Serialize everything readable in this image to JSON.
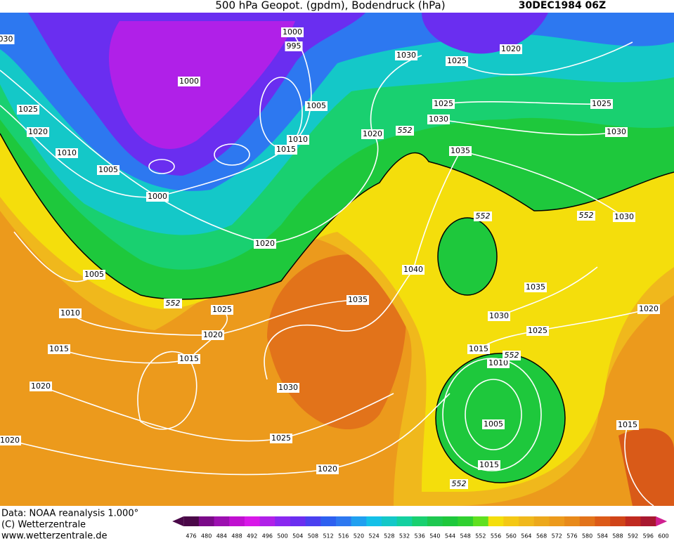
{
  "header": {
    "title": "500 hPa Geopot. (gpdm), Bodendruck (hPa)",
    "date": "30DEC1984 06Z"
  },
  "isobar_labels": [
    "030",
    "1000",
    "995",
    "1030",
    "1025",
    "1020",
    "1000",
    "1025",
    "1005",
    "1025",
    "1030",
    "1025",
    "1020",
    "1020",
    "1010",
    "1015",
    "1030",
    "1010",
    "1035",
    "1005",
    "1000",
    "1030",
    "1020",
    "1005",
    "1040",
    "1035",
    "1035",
    "1025",
    "1020",
    "1010",
    "1030",
    "1025",
    "1020",
    "1015",
    "1015",
    "1010",
    "1015",
    "1020",
    "1030",
    "1005",
    "1015",
    "1025",
    "1020",
    "1015",
    "1020"
  ],
  "geopotential_labels": [
    "552",
    "552",
    "552",
    "552",
    "552",
    "552"
  ],
  "footer": {
    "source": "Data: NOAA reanalysis 1.000°",
    "copyright": "(C) Wetterzentrale",
    "url": "www.wetterzentrale.de"
  },
  "colorbar": {
    "ticks": [
      476,
      480,
      484,
      488,
      492,
      496,
      500,
      504,
      508,
      512,
      516,
      520,
      524,
      528,
      532,
      536,
      540,
      544,
      548,
      552,
      556,
      560,
      564,
      568,
      572,
      576,
      580,
      584,
      588,
      592,
      596,
      600
    ]
  }
}
